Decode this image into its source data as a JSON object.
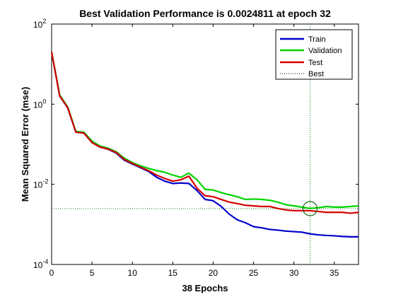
{
  "chart_data": {
    "type": "line",
    "title": "Best Validation Performance is 0.0024811 at epoch 32",
    "xlabel": "38 Epochs",
    "ylabel": "Mean Squared Error  (mse)",
    "xlim": [
      0,
      38
    ],
    "ylim": [
      0.0001,
      100
    ],
    "yscale": "log",
    "grid": false,
    "legend_position": "top-right",
    "x_ticks": [
      0,
      5,
      10,
      15,
      20,
      25,
      30,
      35
    ],
    "x_tick_labels": [
      "0",
      "5",
      "10",
      "15",
      "20",
      "25",
      "30",
      "35"
    ],
    "y_ticks": [
      0.0001,
      0.01,
      1,
      100
    ],
    "y_tick_labels": [
      {
        "base": "10",
        "exp": "-4"
      },
      {
        "base": "10",
        "exp": "-2"
      },
      {
        "base": "10",
        "exp": "0"
      },
      {
        "base": "10",
        "exp": "2"
      }
    ],
    "x": [
      0,
      1,
      2,
      3,
      4,
      5,
      6,
      7,
      8,
      9,
      10,
      11,
      12,
      13,
      14,
      15,
      16,
      17,
      18,
      19,
      20,
      21,
      22,
      23,
      24,
      25,
      26,
      27,
      28,
      29,
      30,
      31,
      32,
      33,
      34,
      35,
      36,
      37,
      38
    ],
    "series": [
      {
        "name": "Train",
        "color": "#0000c8",
        "style": "solid",
        "values": [
          20,
          1.6,
          0.8,
          0.2,
          0.19,
          0.11,
          0.085,
          0.075,
          0.06,
          0.04,
          0.032,
          0.026,
          0.021,
          0.015,
          0.012,
          0.0105,
          0.0108,
          0.0105,
          0.007,
          0.0042,
          0.0039,
          0.0028,
          0.0018,
          0.0013,
          0.0011,
          0.00088,
          0.00082,
          0.00075,
          0.00072,
          0.00068,
          0.00066,
          0.00064,
          0.00058,
          0.00055,
          0.00053,
          0.00052,
          0.0005,
          0.00049,
          0.00049
        ]
      },
      {
        "name": "Validation",
        "color": "#00d400",
        "style": "solid",
        "values": [
          20,
          1.7,
          0.85,
          0.21,
          0.2,
          0.12,
          0.09,
          0.08,
          0.065,
          0.045,
          0.035,
          0.029,
          0.025,
          0.022,
          0.02,
          0.017,
          0.015,
          0.019,
          0.013,
          0.0075,
          0.0072,
          0.0062,
          0.0055,
          0.0049,
          0.0042,
          0.0043,
          0.0042,
          0.004,
          0.0036,
          0.0031,
          0.0029,
          0.0027,
          0.0025,
          0.0026,
          0.0028,
          0.0027,
          0.0027,
          0.0028,
          0.0029
        ]
      },
      {
        "name": "Test",
        "color": "#d40000",
        "style": "solid",
        "values": [
          20,
          1.6,
          0.82,
          0.2,
          0.19,
          0.11,
          0.085,
          0.076,
          0.062,
          0.042,
          0.033,
          0.027,
          0.022,
          0.017,
          0.014,
          0.012,
          0.013,
          0.016,
          0.008,
          0.0052,
          0.0049,
          0.0042,
          0.0036,
          0.0033,
          0.003,
          0.0029,
          0.0028,
          0.0028,
          0.0025,
          0.0023,
          0.0022,
          0.0022,
          0.0022,
          0.0021,
          0.002,
          0.002,
          0.002,
          0.0019,
          0.002
        ]
      }
    ],
    "best": {
      "name": "Best",
      "epoch": 32,
      "value": 0.0024811
    }
  }
}
